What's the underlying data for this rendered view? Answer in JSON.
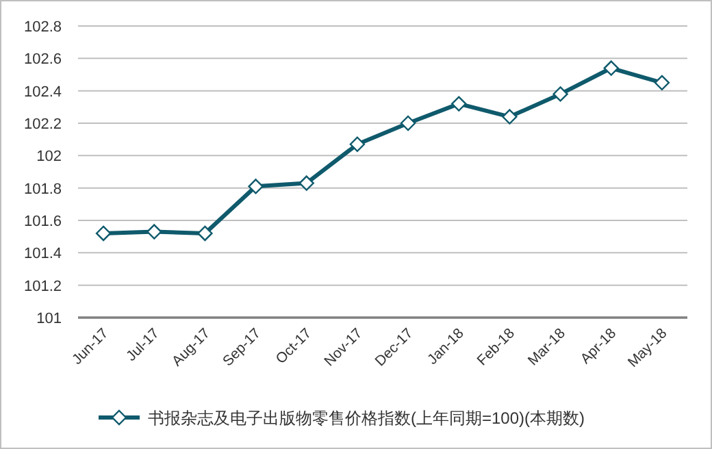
{
  "chart_data": {
    "type": "line",
    "categories": [
      "Jun-17",
      "Jul-17",
      "Aug-17",
      "Sep-17",
      "Oct-17",
      "Nov-17",
      "Dec-17",
      "Jan-18",
      "Feb-18",
      "Mar-18",
      "Apr-18",
      "May-18"
    ],
    "series": [
      {
        "name": "书报杂志及电子出版物零售价格指数(上年同期=100)(本期数)",
        "color": "#0f5a6c",
        "values": [
          101.52,
          101.53,
          101.52,
          101.81,
          101.83,
          102.07,
          102.2,
          102.32,
          102.24,
          102.38,
          102.54,
          102.45
        ]
      }
    ],
    "ylim": [
      101,
      102.8
    ],
    "yticks": [
      101,
      101.2,
      101.4,
      101.6,
      101.8,
      102,
      102.2,
      102.4,
      102.6,
      102.8
    ],
    "grid": "y",
    "legend": "bottom",
    "marker": "diamond",
    "line_style": "solid"
  }
}
